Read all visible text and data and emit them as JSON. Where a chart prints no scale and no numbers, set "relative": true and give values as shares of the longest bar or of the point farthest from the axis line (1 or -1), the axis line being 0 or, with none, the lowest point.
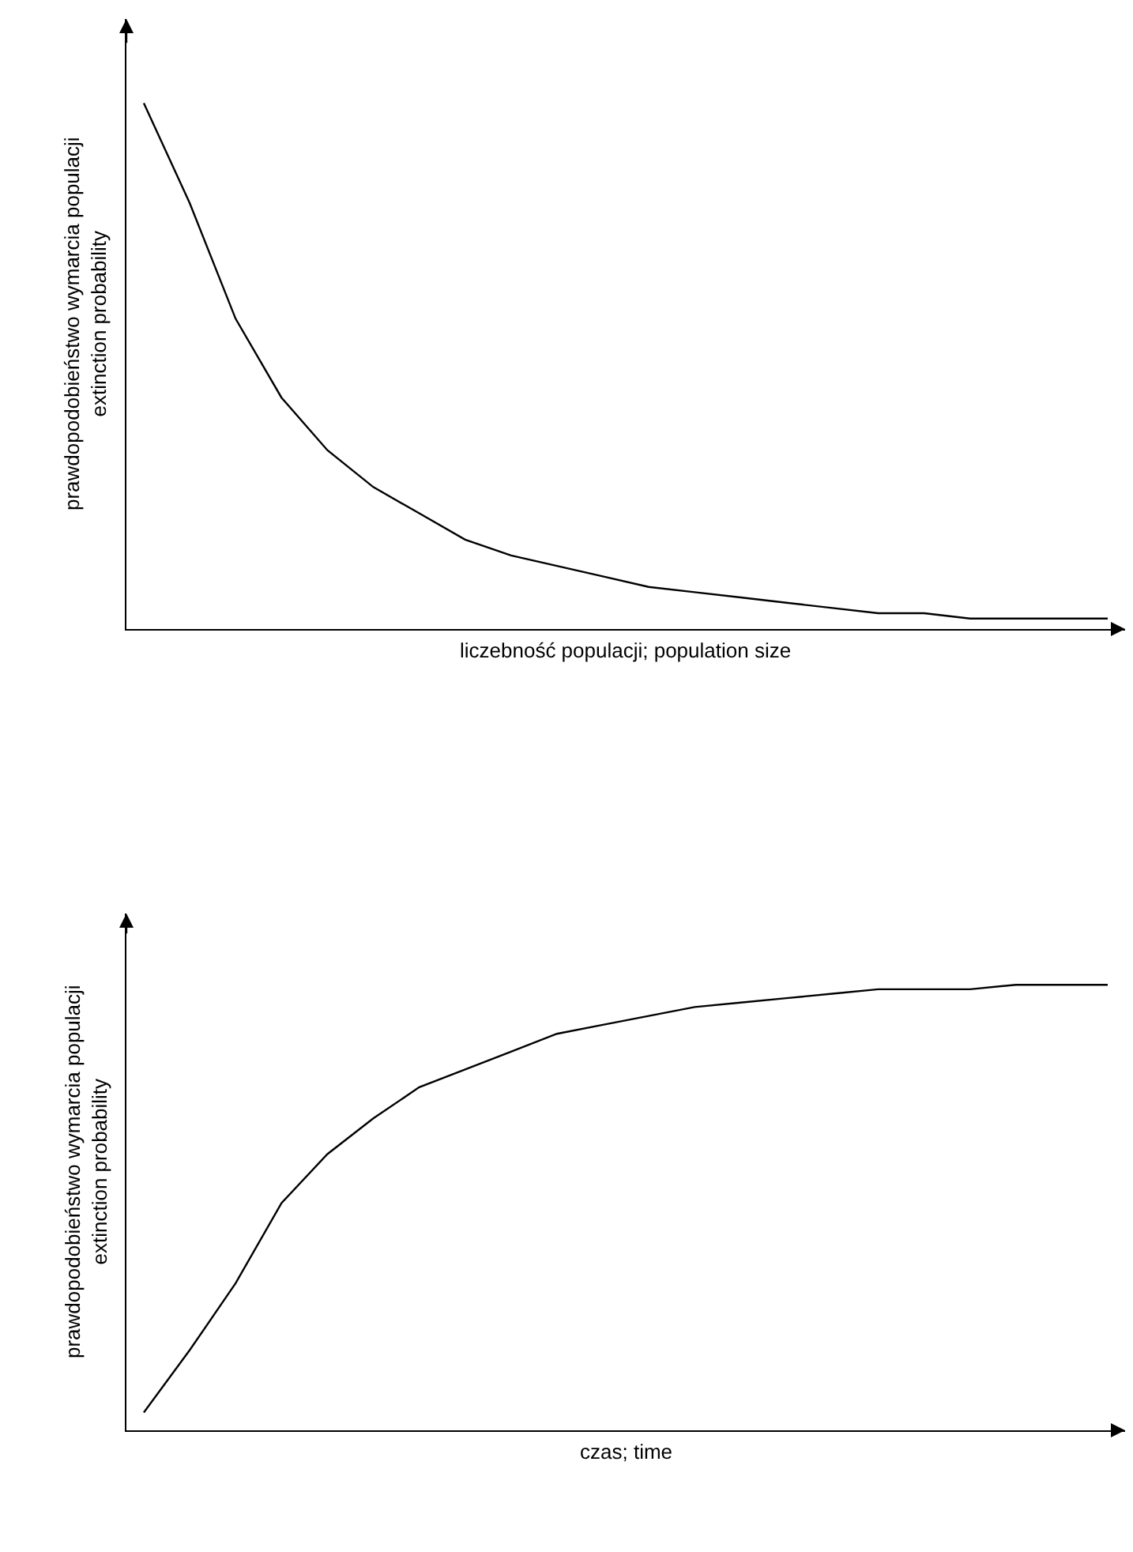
{
  "chart_data": [
    {
      "type": "line",
      "relative": true,
      "xlabel": "liczebność populacji; population size",
      "ylabel": "prawdopodobieństwo wymarcia populacji\nextinction probability",
      "categories": [
        null,
        null,
        null,
        null,
        null,
        null,
        null,
        null,
        null,
        null,
        null,
        null,
        null,
        null,
        null,
        null,
        null,
        null,
        null,
        null,
        null,
        null
      ],
      "series": [
        {
          "color": "#000000",
          "values": [
            1,
            0.81,
            0.59,
            0.44,
            0.34,
            0.27,
            0.22,
            0.17,
            0.14,
            0.12,
            0.1,
            0.08,
            0.07,
            0.06,
            0.05,
            0.04,
            0.03,
            0.03,
            0.02,
            0.02,
            0.02,
            0.02
          ]
        }
      ]
    },
    {
      "type": "line",
      "relative": true,
      "xlabel": "czas; time",
      "ylabel": "prawdopodobieństwo wymarcia populacji\nextinction probability",
      "categories": [
        null,
        null,
        null,
        null,
        null,
        null,
        null,
        null,
        null,
        null,
        null,
        null,
        null,
        null,
        null,
        null,
        null,
        null,
        null,
        null,
        null,
        null
      ],
      "series": [
        {
          "color": "#000000",
          "values": [
            0.04,
            0.18,
            0.33,
            0.51,
            0.62,
            0.7,
            0.77,
            0.81,
            0.85,
            0.89,
            0.91,
            0.93,
            0.95,
            0.96,
            0.97,
            0.98,
            0.99,
            0.99,
            0.99,
            1.0,
            1.0,
            1.0
          ]
        }
      ]
    }
  ]
}
